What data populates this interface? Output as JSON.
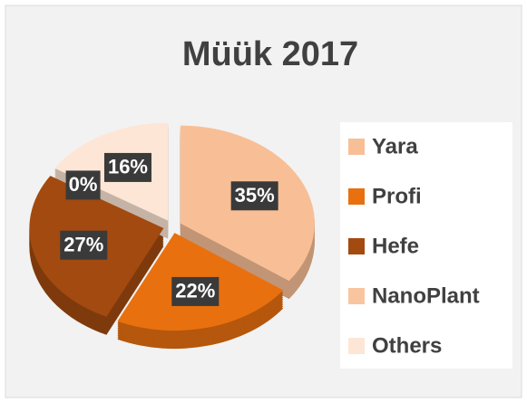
{
  "chart_data": {
    "type": "pie",
    "title": "Müük 2017",
    "categories": [
      "Yara",
      "Profi",
      "Hefe",
      "NanoPlant",
      "Others"
    ],
    "values": [
      35,
      22,
      27,
      0,
      16
    ],
    "value_labels": [
      "35%",
      "22%",
      "27%",
      "0%",
      "16%"
    ],
    "colors": [
      "#f8bf96",
      "#e8700f",
      "#a24a10",
      "#f9c59f",
      "#fde6d5"
    ],
    "legend": "right"
  }
}
